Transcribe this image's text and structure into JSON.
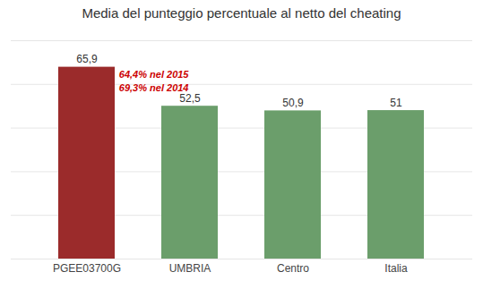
{
  "chart_data": {
    "type": "bar",
    "title": "Media del punteggio percentuale al netto del cheating",
    "categories": [
      "PGEE03700G",
      "UMBRIA",
      "Centro",
      "Italia"
    ],
    "values": [
      65.9,
      52.5,
      50.9,
      51
    ],
    "value_labels": [
      "65,9",
      "52,5",
      "50,9",
      "51"
    ],
    "data_labels": true,
    "colors": [
      "#9b2b2b",
      "#6b9e6b",
      "#6b9e6b",
      "#6b9e6b"
    ],
    "ylim": [
      0,
      75
    ],
    "yticks": [
      0,
      15,
      30,
      45,
      60,
      75
    ],
    "grid": true,
    "tick_labels": "x",
    "annotations": [
      {
        "text": "64,4% nel 2015",
        "color": "#cc0000"
      },
      {
        "text": "69,3% nel 2014",
        "color": "#cc0000"
      }
    ]
  }
}
